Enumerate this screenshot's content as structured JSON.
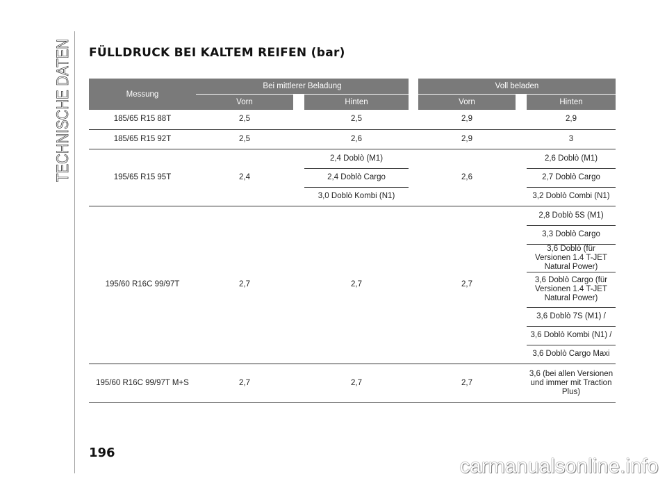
{
  "side_title": "TECHNISCHE DATEN",
  "heading": "FÜLLDRUCK BEI KALTEM REIFEN (bar)",
  "table": {
    "col_measure": "Messung",
    "group_mid": "Bei mittlerer Beladung",
    "group_full": "Voll beladen",
    "sub_front": "Vorn",
    "sub_rear": "Hinten",
    "rows": [
      {
        "size": "185/65 R15 88T",
        "mid_front": "2,5",
        "mid_rear": "2,5",
        "full_front": "2,9",
        "full_rear": "2,9"
      },
      {
        "size": "185/65 R15 92T",
        "mid_front": "2,5",
        "mid_rear": "2,6",
        "full_front": "2,9",
        "full_rear": "3"
      },
      {
        "size": "195/65 R15 95T",
        "mid_front": "2,4",
        "mid_rear": [
          "2,4 Doblò (M1)",
          "2,4 Doblò Cargo",
          "3,0 Doblò Kombi (N1)"
        ],
        "full_front": "2,6",
        "full_rear": [
          "2,6 Doblò (M1)",
          "2,7 Doblò Cargo",
          "3,2 Doblò Combi (N1)"
        ]
      },
      {
        "size": "195/60 R16C 99/97T",
        "mid_front": "2,7",
        "mid_rear": "2,7",
        "full_front": "2,7",
        "full_rear": [
          "2,8 Doblò 5S (M1)",
          "3,3 Doblò Cargo",
          "3,6 Doblò (für Versionen 1.4 T-JET Natural Power)",
          "3,6 Doblò Cargo (für Versionen 1.4 T-JET Natural Power)",
          "3,6 Doblò 7S (M1) /",
          "3,6 Doblò Kombi (N1) /",
          "3,6 Doblò Cargo Maxi"
        ]
      },
      {
        "size": "195/60 R16C 99/97T M+S",
        "mid_front": "2,7",
        "mid_rear": "2,7",
        "full_front": "2,7",
        "full_rear": "3,6 (bei allen Versionen und immer mit Traction Plus)"
      }
    ]
  },
  "page_number": "196",
  "watermark": "carmanualsonline.info"
}
